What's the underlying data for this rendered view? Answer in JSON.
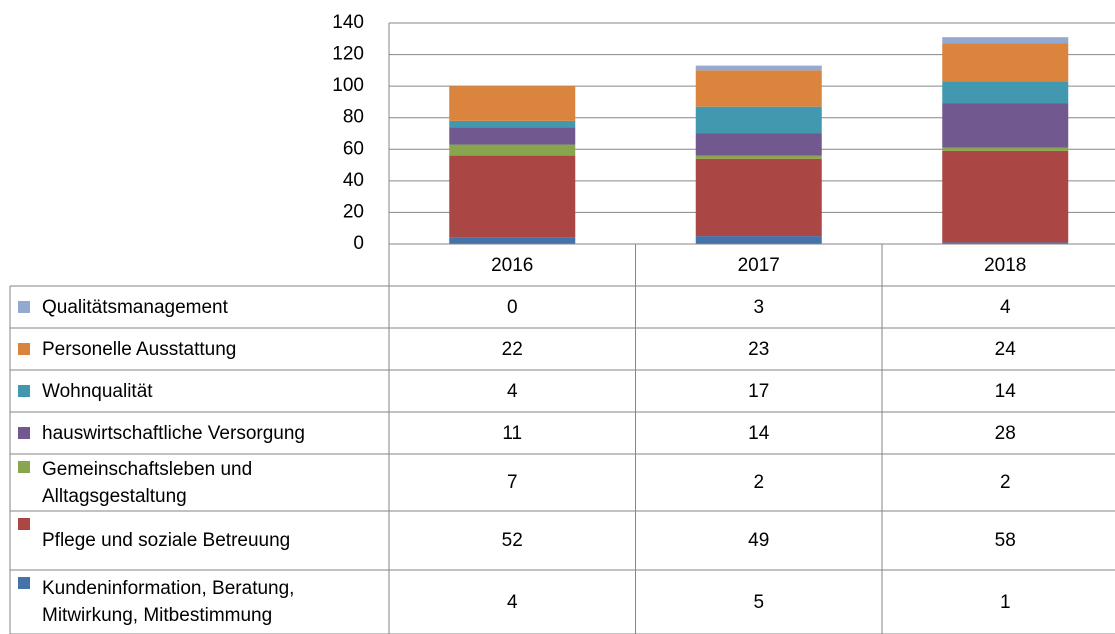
{
  "chart_data": {
    "type": "stacked_bar_table",
    "categories": [
      "2016",
      "2017",
      "2018"
    ],
    "series": [
      {
        "name": "Kundeninformation, Beratung, Mitwirkung, Mitbestimmung",
        "color": "#4572a7",
        "values": [
          4,
          5,
          1
        ]
      },
      {
        "name": "Pflege und soziale Betreuung",
        "color": "#aa4643",
        "values": [
          52,
          49,
          58
        ]
      },
      {
        "name": "Gemeinschaftsleben und Alltagsgestaltung",
        "color": "#89a54e",
        "values": [
          7,
          2,
          2
        ]
      },
      {
        "name": "hauswirtschaftliche Versorgung",
        "color": "#71588f",
        "values": [
          11,
          14,
          28
        ]
      },
      {
        "name": "Wohnqualität",
        "color": "#4198af",
        "values": [
          4,
          17,
          14
        ]
      },
      {
        "name": "Personelle Ausstattung",
        "color": "#db843d",
        "values": [
          22,
          23,
          24
        ]
      },
      {
        "name": "Qualitätsmanagement",
        "color": "#93a9cf",
        "values": [
          0,
          3,
          4
        ]
      }
    ],
    "ylim": [
      0,
      140
    ],
    "yticks": [
      0,
      20,
      40,
      60,
      80,
      100,
      120,
      140
    ],
    "grid": true
  }
}
